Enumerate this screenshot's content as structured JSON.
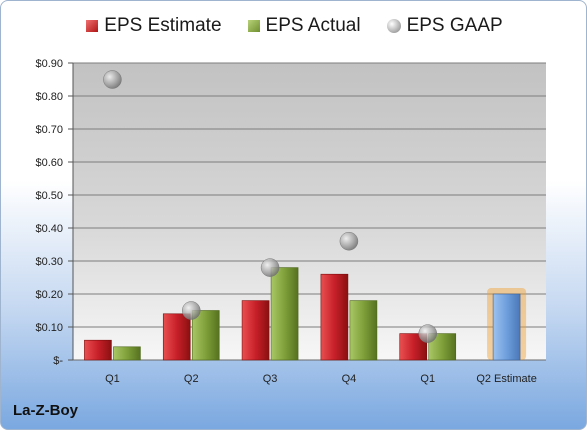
{
  "company": "La-Z-Boy",
  "legend": {
    "estimate": "EPS Estimate",
    "actual": "EPS Actual",
    "gaap": "EPS GAAP"
  },
  "colors": {
    "estimate": "#c8202a",
    "actual": "#7fa03a",
    "gaap": "#a0a0a0",
    "next_estimate": "#6f9fdc",
    "next_estimate_glow": "#f0a030"
  },
  "chart_data": {
    "type": "bar",
    "categories": [
      "Q1",
      "Q2",
      "Q3",
      "Q4",
      "Q1",
      "Q2 Estimate"
    ],
    "y_tick_labels": [
      "$-",
      "$0.10",
      "$0.20",
      "$0.30",
      "$0.40",
      "$0.50",
      "$0.60",
      "$0.70",
      "$0.80",
      "$0.90"
    ],
    "y_ticks": [
      0,
      0.1,
      0.2,
      0.3,
      0.4,
      0.5,
      0.6,
      0.7,
      0.8,
      0.9
    ],
    "ylim": [
      0,
      0.9
    ],
    "grid": true,
    "legend_position": "top",
    "series": [
      {
        "name": "EPS Estimate",
        "type": "bar",
        "values": [
          0.06,
          0.14,
          0.18,
          0.26,
          0.08,
          null
        ]
      },
      {
        "name": "EPS Actual",
        "type": "bar",
        "values": [
          0.04,
          0.15,
          0.28,
          0.18,
          0.08,
          null
        ]
      },
      {
        "name": "EPS GAAP",
        "type": "scatter",
        "values": [
          0.85,
          0.15,
          0.28,
          0.36,
          0.08,
          null
        ]
      }
    ],
    "next_quarter_estimate": 0.2
  }
}
